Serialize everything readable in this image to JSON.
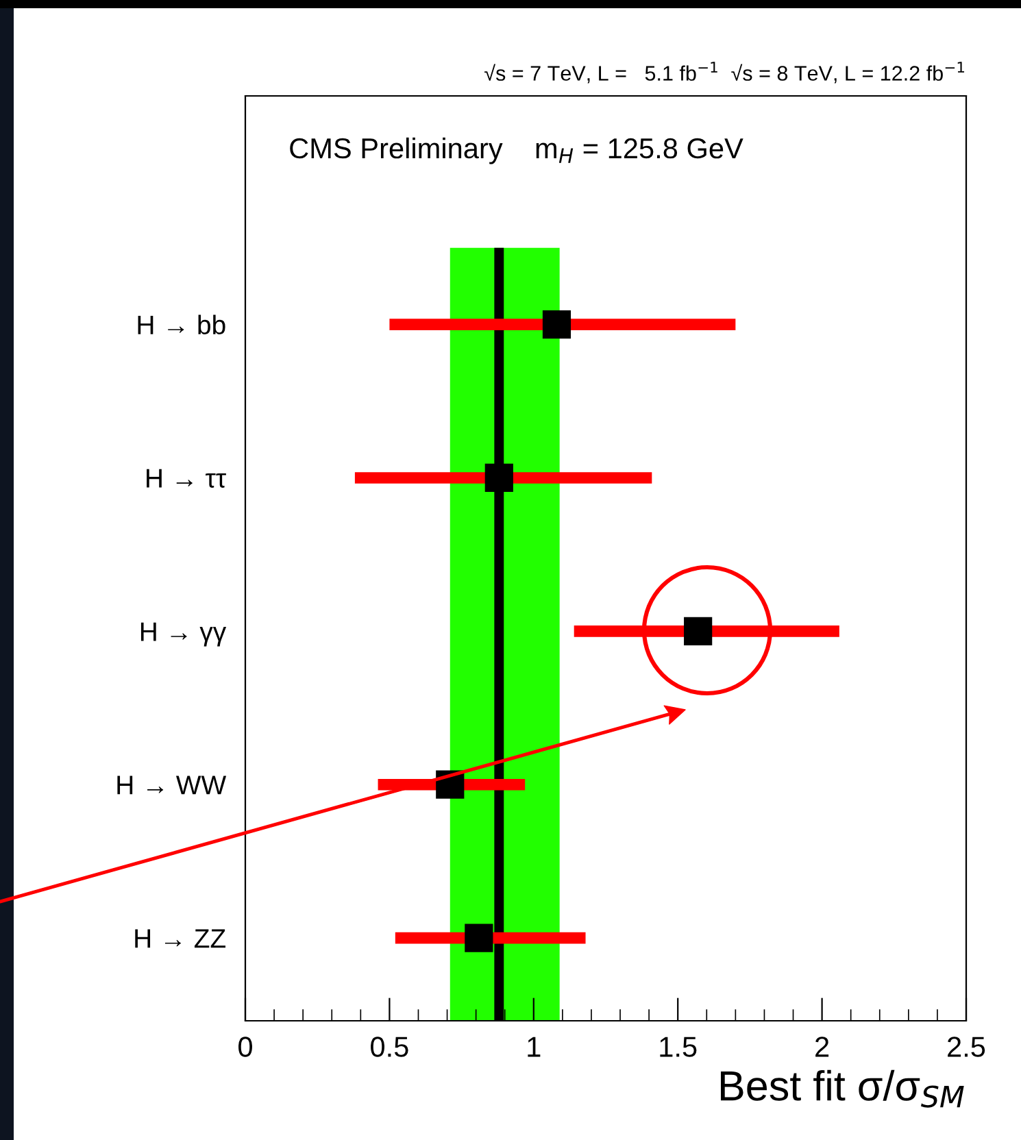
{
  "chart_data": {
    "type": "scatter",
    "orientation": "horizontal",
    "title": "√s = 7 TeV, L =   5.1 fb$^{−1}$  √s = 8 TeV, L = 12.2 fb$^{−1}$",
    "xlabel": "Best fit σ/σ$_{SM}$",
    "annotations": [
      "CMS Preliminary    m$_{H}$ = 125.8 GeV"
    ],
    "categories": [
      "H → bb",
      "H → ττ",
      "H → γγ",
      "H → WW",
      "H → ZZ"
    ],
    "series": [
      {
        "color": "#000000",
        "values": [
          1.08,
          0.88,
          1.57,
          0.71,
          0.81
        ],
        "errors": [
          [
            0.5,
            1.7
          ],
          [
            0.38,
            1.41
          ],
          [
            1.14,
            2.06
          ],
          [
            0.46,
            0.97
          ],
          [
            0.52,
            1.18
          ]
        ]
      }
    ],
    "marker": "square",
    "xlim": [
      0,
      2.5
    ],
    "xticks": [
      0,
      0.5,
      1,
      1.5,
      2,
      2.5
    ],
    "ref_lines": [
      {
        "axis": "x",
        "value": 0.88,
        "color": "#000000"
      }
    ],
    "bands": [
      {
        "axis": "x",
        "from": 0.71,
        "to": 1.09,
        "color": "#22ff00"
      }
    ],
    "grid": false,
    "legend": false
  }
}
